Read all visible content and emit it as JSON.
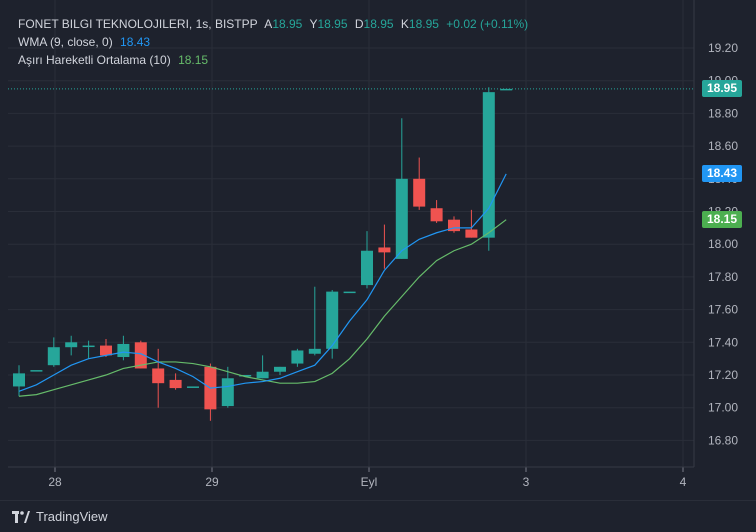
{
  "legend": {
    "symbol": "FONET BILGI TEKNOLOJILERI, 1s, BISTPP",
    "open_label": "A",
    "open": "18.95",
    "high_label": "Y",
    "high": "18.95",
    "low_label": "D",
    "low": "18.95",
    "close_label": "K",
    "close": "18.95",
    "change": "+0.02 (+0.11%)",
    "wma_label": "WMA (9, close, 0)",
    "wma_value": "18.43",
    "ema_label": "Aşırı Hareketli Ortalama (10)",
    "ema_value": "18.15"
  },
  "price_tags": {
    "last": "18.95",
    "wma": "18.43",
    "ema": "18.15"
  },
  "footer": {
    "brand": "TradingView"
  },
  "colors": {
    "background": "#1e222d",
    "up": "#26a69a",
    "down": "#ef5350",
    "wma": "#2196f3",
    "ema": "#66bb6a",
    "grid": "#2a2e39"
  },
  "chart_data": {
    "type": "candlestick",
    "ylim": [
      16.8,
      19.2
    ],
    "y_ticks": [
      "16.80",
      "17.00",
      "17.20",
      "17.40",
      "17.60",
      "17.80",
      "18.00",
      "18.20",
      "18.40",
      "18.60",
      "18.80",
      "19.00",
      "19.20"
    ],
    "x_ticks": [
      {
        "label": "28",
        "index": 2
      },
      {
        "label": "29",
        "index": 11
      },
      {
        "label": "Eyl",
        "index": 20
      },
      {
        "label": "3",
        "index": 29
      },
      {
        "label": "4",
        "index": 38
      }
    ],
    "candles": [
      {
        "o": 17.13,
        "h": 17.26,
        "l": 17.07,
        "c": 17.21
      },
      {
        "o": 17.23,
        "h": 17.23,
        "l": 17.23,
        "c": 17.23
      },
      {
        "o": 17.26,
        "h": 17.43,
        "l": 17.25,
        "c": 17.37
      },
      {
        "o": 17.37,
        "h": 17.44,
        "l": 17.32,
        "c": 17.4
      },
      {
        "o": 17.38,
        "h": 17.41,
        "l": 17.3,
        "c": 17.38
      },
      {
        "o": 17.38,
        "h": 17.42,
        "l": 17.31,
        "c": 17.32
      },
      {
        "o": 17.31,
        "h": 17.44,
        "l": 17.29,
        "c": 17.39
      },
      {
        "o": 17.4,
        "h": 17.41,
        "l": 17.24,
        "c": 17.24
      },
      {
        "o": 17.24,
        "h": 17.36,
        "l": 17.0,
        "c": 17.15
      },
      {
        "o": 17.17,
        "h": 17.21,
        "l": 17.11,
        "c": 17.12
      },
      {
        "o": 17.13,
        "h": 17.13,
        "l": 17.13,
        "c": 17.13
      },
      {
        "o": 17.25,
        "h": 17.27,
        "l": 16.92,
        "c": 16.99
      },
      {
        "o": 17.01,
        "h": 17.25,
        "l": 17.0,
        "c": 17.18
      },
      {
        "o": 17.2,
        "h": 17.2,
        "l": 17.2,
        "c": 17.2
      },
      {
        "o": 17.18,
        "h": 17.32,
        "l": 17.18,
        "c": 17.22
      },
      {
        "o": 17.22,
        "h": 17.25,
        "l": 17.2,
        "c": 17.25
      },
      {
        "o": 17.27,
        "h": 17.36,
        "l": 17.25,
        "c": 17.35
      },
      {
        "o": 17.33,
        "h": 17.74,
        "l": 17.32,
        "c": 17.36
      },
      {
        "o": 17.36,
        "h": 17.72,
        "l": 17.3,
        "c": 17.71
      },
      {
        "o": 17.71,
        "h": 17.71,
        "l": 17.71,
        "c": 17.71
      },
      {
        "o": 17.75,
        "h": 18.08,
        "l": 17.73,
        "c": 17.96
      },
      {
        "o": 17.98,
        "h": 18.12,
        "l": 17.85,
        "c": 17.95
      },
      {
        "o": 17.91,
        "h": 18.77,
        "l": 17.91,
        "c": 18.4
      },
      {
        "o": 18.4,
        "h": 18.53,
        "l": 18.21,
        "c": 18.23
      },
      {
        "o": 18.22,
        "h": 18.27,
        "l": 18.13,
        "c": 18.14
      },
      {
        "o": 18.15,
        "h": 18.17,
        "l": 18.07,
        "c": 18.08
      },
      {
        "o": 18.09,
        "h": 18.21,
        "l": 18.04,
        "c": 18.04
      },
      {
        "o": 18.04,
        "h": 18.96,
        "l": 17.96,
        "c": 18.93
      },
      {
        "o": 18.95,
        "h": 18.95,
        "l": 18.95,
        "c": 18.95
      }
    ],
    "wma": [
      17.1,
      17.14,
      17.2,
      17.26,
      17.3,
      17.32,
      17.34,
      17.33,
      17.28,
      17.24,
      17.19,
      17.12,
      17.13,
      17.15,
      17.16,
      17.18,
      17.22,
      17.26,
      17.38,
      17.53,
      17.66,
      17.84,
      17.96,
      18.03,
      18.07,
      18.1,
      18.1,
      18.22,
      18.43
    ],
    "ema": [
      17.07,
      17.08,
      17.11,
      17.14,
      17.17,
      17.2,
      17.24,
      17.26,
      17.28,
      17.28,
      17.27,
      17.25,
      17.22,
      17.19,
      17.17,
      17.15,
      17.15,
      17.16,
      17.21,
      17.3,
      17.42,
      17.56,
      17.68,
      17.8,
      17.9,
      17.96,
      18.0,
      18.07,
      18.15
    ]
  }
}
